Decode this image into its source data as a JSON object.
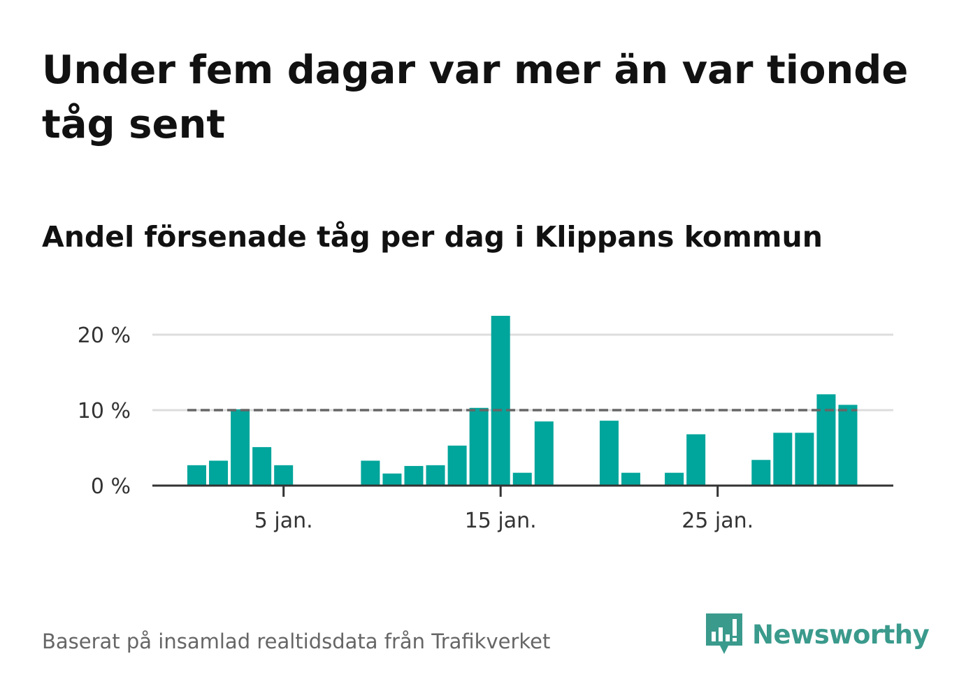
{
  "title": "Under fem dagar var mer än var tionde tåg sent",
  "subtitle": "Andel försenade tåg per dag i Klippans kommun",
  "source": "Baserat på insamlad realtidsdata från Trafikverket",
  "brand": {
    "name": "Newsworthy",
    "icon": "newsworthy-logo-icon",
    "color": "#3a9a8c"
  },
  "colors": {
    "bar": "#00a59b",
    "grid": "#dddddd",
    "axis": "#333333",
    "reference": "#666666",
    "tick_text": "#333333"
  },
  "chart_data": {
    "type": "bar",
    "x": [
      1,
      2,
      3,
      4,
      5,
      6,
      7,
      8,
      9,
      10,
      11,
      12,
      13,
      14,
      15,
      16,
      17,
      18,
      19,
      20,
      21,
      22,
      23,
      24,
      25,
      26,
      27,
      28,
      29,
      30,
      31
    ],
    "values": [
      2.7,
      3.3,
      10.1,
      5.1,
      2.7,
      0,
      0,
      0,
      3.3,
      1.6,
      2.6,
      2.7,
      5.3,
      10.3,
      22.5,
      1.7,
      8.5,
      0,
      0,
      8.6,
      1.7,
      0,
      1.7,
      6.8,
      0,
      0,
      3.4,
      7.0,
      7.0,
      12.1,
      10.7
    ],
    "x_ticks": [
      {
        "value": 5,
        "label": "5 jan."
      },
      {
        "value": 15,
        "label": "15 jan."
      },
      {
        "value": 25,
        "label": "25 jan."
      }
    ],
    "y_ticks": [
      {
        "value": 0,
        "label": "0 %"
      },
      {
        "value": 10,
        "label": "10 %"
      },
      {
        "value": 20,
        "label": "20 %"
      }
    ],
    "ylim": [
      0,
      20
    ],
    "reference_line": {
      "value": 10,
      "style": "dashed"
    },
    "xlabel": "",
    "ylabel": "",
    "grid": true
  }
}
